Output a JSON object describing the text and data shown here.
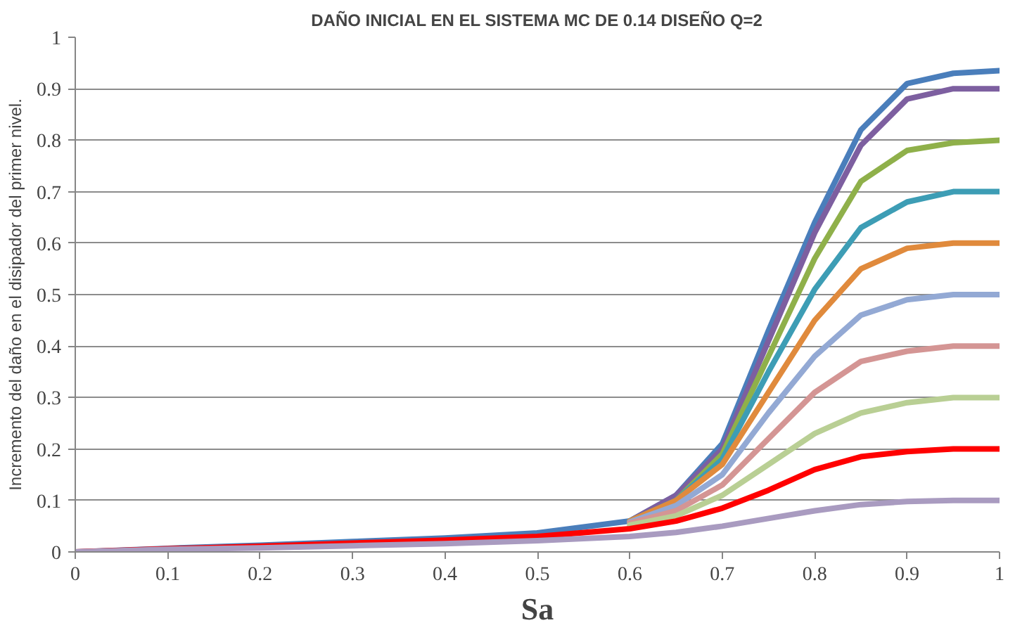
{
  "chart_data": {
    "type": "line",
    "title": "DAÑO INICIAL EN EL SISTEMA MC DE 0.14 DISEÑO Q=2",
    "xlabel": "Sa",
    "ylabel": "Incremento del daño en el disipador del primer nivel.",
    "x": [
      0,
      0.1,
      0.2,
      0.3,
      0.4,
      0.5,
      0.6,
      0.65,
      0.7,
      0.75,
      0.8,
      0.85,
      0.9,
      0.95,
      1
    ],
    "xlim": [
      0,
      1
    ],
    "ylim": [
      0,
      1
    ],
    "xticks": [
      0,
      0.1,
      0.2,
      0.3,
      0.4,
      0.5,
      0.6,
      0.7,
      0.8,
      0.9,
      1
    ],
    "yticks": [
      0,
      0.1,
      0.2,
      0.3,
      0.4,
      0.5,
      0.6,
      0.7,
      0.8,
      0.9,
      1
    ],
    "grid": "y",
    "marker": "none",
    "line_style": "solid",
    "series": [
      {
        "color": "#4a7ebb",
        "values": [
          0,
          0.007,
          0.013,
          0.02,
          0.027,
          0.037,
          0.06,
          0.11,
          0.21,
          0.43,
          0.64,
          0.82,
          0.91,
          0.93,
          0.935
        ]
      },
      {
        "color": "#7d5fa0",
        "values": [
          null,
          null,
          null,
          null,
          null,
          null,
          0.06,
          0.11,
          0.2,
          0.41,
          0.62,
          0.79,
          0.88,
          0.9,
          0.9
        ]
      },
      {
        "color": "#8fb04a",
        "values": [
          null,
          null,
          null,
          null,
          null,
          null,
          0.06,
          0.1,
          0.19,
          0.38,
          0.57,
          0.72,
          0.78,
          0.795,
          0.8
        ]
      },
      {
        "color": "#3d9db5",
        "values": [
          null,
          null,
          null,
          null,
          null,
          null,
          0.06,
          0.1,
          0.18,
          0.35,
          0.51,
          0.63,
          0.68,
          0.7,
          0.7
        ]
      },
      {
        "color": "#e08a3c",
        "values": [
          null,
          null,
          null,
          null,
          null,
          null,
          0.06,
          0.1,
          0.17,
          0.31,
          0.45,
          0.55,
          0.59,
          0.6,
          0.6
        ]
      },
      {
        "color": "#93a9d4",
        "values": [
          null,
          null,
          null,
          null,
          null,
          null,
          0.058,
          0.09,
          0.15,
          0.27,
          0.38,
          0.46,
          0.49,
          0.5,
          0.5
        ]
      },
      {
        "color": "#d49594",
        "values": [
          null,
          null,
          null,
          null,
          null,
          null,
          0.056,
          0.08,
          0.13,
          0.22,
          0.31,
          0.37,
          0.39,
          0.4,
          0.4
        ]
      },
      {
        "color": "#b9cf94",
        "values": [
          null,
          null,
          null,
          null,
          null,
          null,
          0.052,
          0.07,
          0.11,
          0.17,
          0.23,
          0.27,
          0.29,
          0.3,
          0.3
        ]
      },
      {
        "color": "#ff0000",
        "values": [
          0,
          0.006,
          0.011,
          0.017,
          0.023,
          0.03,
          0.045,
          0.06,
          0.085,
          0.12,
          0.16,
          0.185,
          0.195,
          0.2,
          0.2
        ]
      },
      {
        "color": "#a99bc0",
        "values": [
          0,
          0.005,
          0.008,
          0.012,
          0.016,
          0.022,
          0.03,
          0.038,
          0.05,
          0.065,
          0.08,
          0.092,
          0.098,
          0.1,
          0.1
        ]
      }
    ]
  }
}
